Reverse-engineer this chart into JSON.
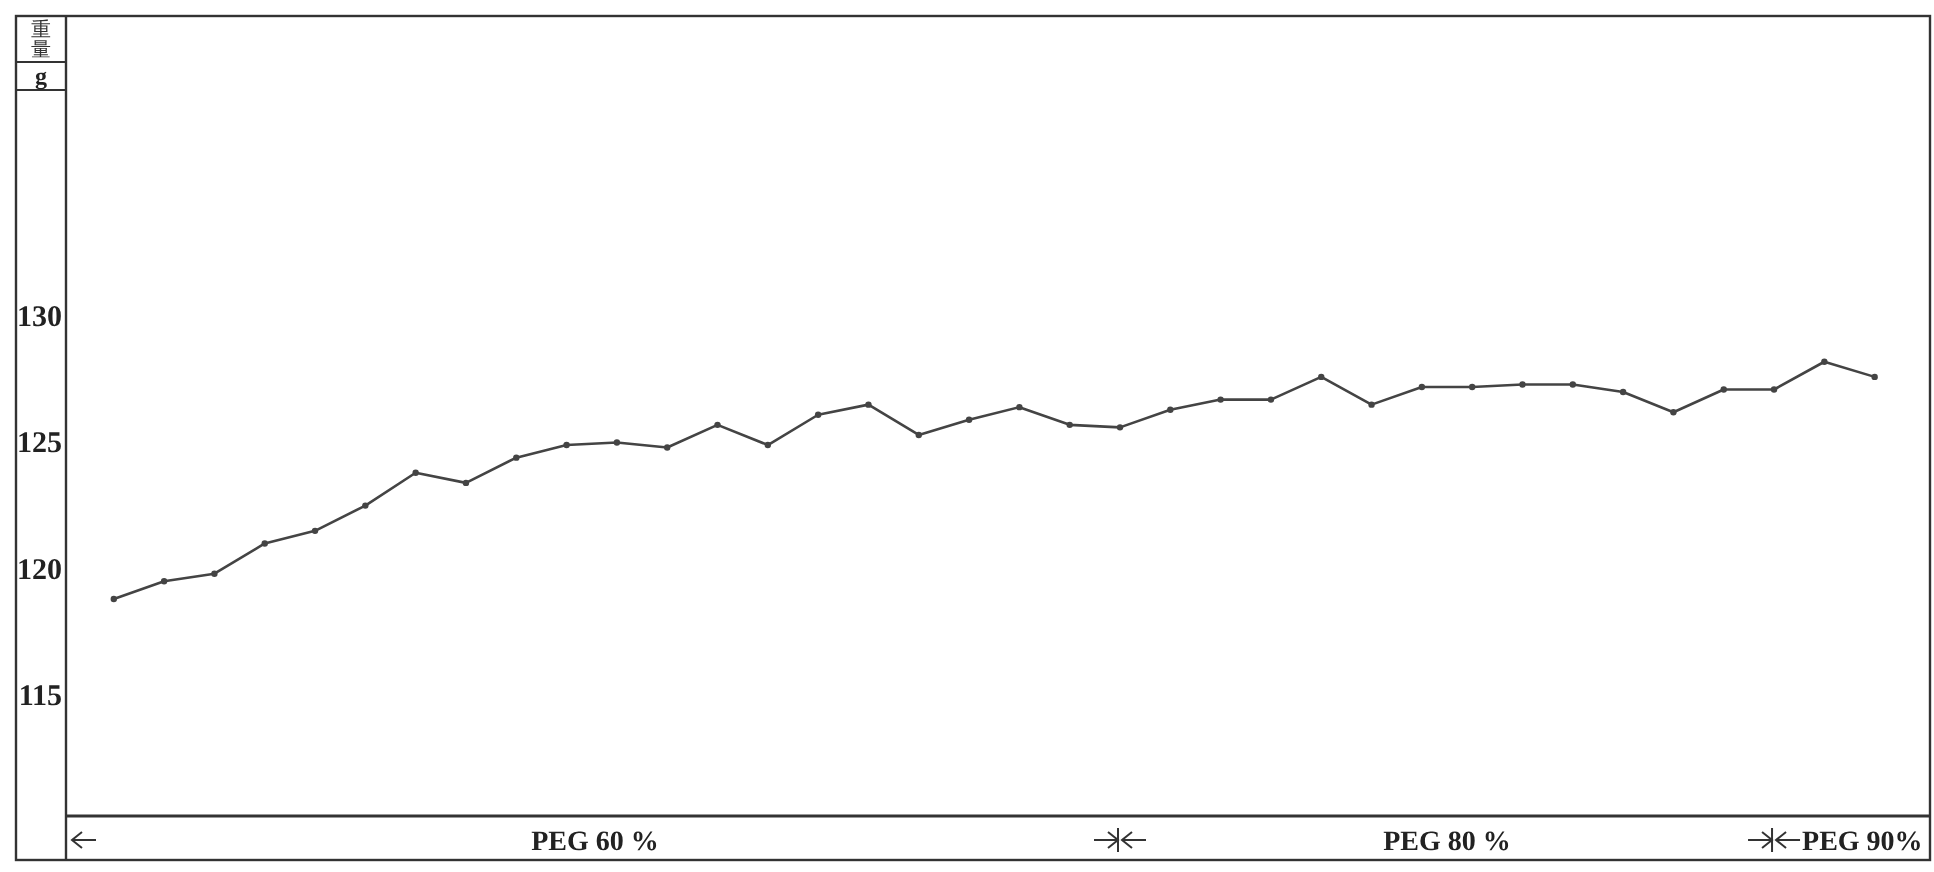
{
  "chart_data": {
    "type": "line",
    "ylabel": "重量\ng",
    "categories": [
      null,
      null,
      null,
      null,
      null,
      null,
      null,
      null,
      null,
      null,
      null,
      null,
      null,
      null,
      null,
      null,
      null,
      null,
      null,
      null,
      null,
      null,
      null,
      null,
      null,
      null,
      null,
      null,
      null,
      null,
      null,
      null,
      null,
      null,
      null,
      null
    ],
    "series": [
      {
        "color": "#444444",
        "values": [
          118.8,
          119.5,
          119.8,
          121.0,
          121.5,
          122.5,
          123.8,
          123.4,
          124.4,
          124.9,
          125.0,
          124.8,
          125.7,
          124.9,
          126.1,
          126.5,
          125.3,
          125.9,
          126.4,
          125.7,
          125.6,
          126.3,
          126.7,
          126.7,
          127.6,
          126.5,
          127.2,
          127.2,
          127.3,
          127.3,
          127.0,
          126.2,
          127.1,
          127.1,
          128.2,
          127.6
        ]
      }
    ],
    "ylim": [
      110.2,
      141.9
    ],
    "yticks": [
      115,
      120,
      125,
      130
    ],
    "tick_labels": "y",
    "grid": false,
    "marker": "circle",
    "line_style": "solid",
    "annotations": [
      "PEG 60 %",
      "PEG 80 %",
      "PEG 90%"
    ]
  }
}
